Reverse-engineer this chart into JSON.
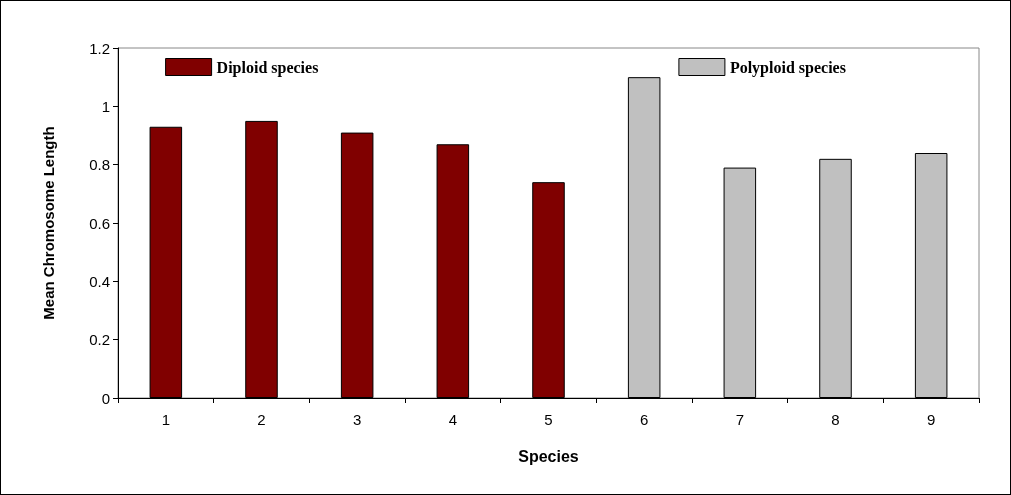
{
  "chart_data": {
    "type": "bar",
    "xlabel": "Species",
    "ylabel": "Mean Chromosome Length",
    "categories": [
      "1",
      "2",
      "3",
      "4",
      "5",
      "6",
      "7",
      "8",
      "9"
    ],
    "series": [
      {
        "name": "Diploid species",
        "color": "#800000",
        "values": [
          0.93,
          0.95,
          0.91,
          0.87,
          0.74,
          null,
          null,
          null,
          null
        ]
      },
      {
        "name": "Polyploid species",
        "color": "#c0c0c0",
        "values": [
          null,
          null,
          null,
          null,
          null,
          1.1,
          0.79,
          0.82,
          0.84
        ]
      }
    ],
    "ylim": [
      0,
      1.2
    ],
    "yticks": [
      0,
      0.2,
      0.4,
      0.6,
      0.8,
      1,
      1.2
    ],
    "grid": false,
    "legend": "top"
  }
}
